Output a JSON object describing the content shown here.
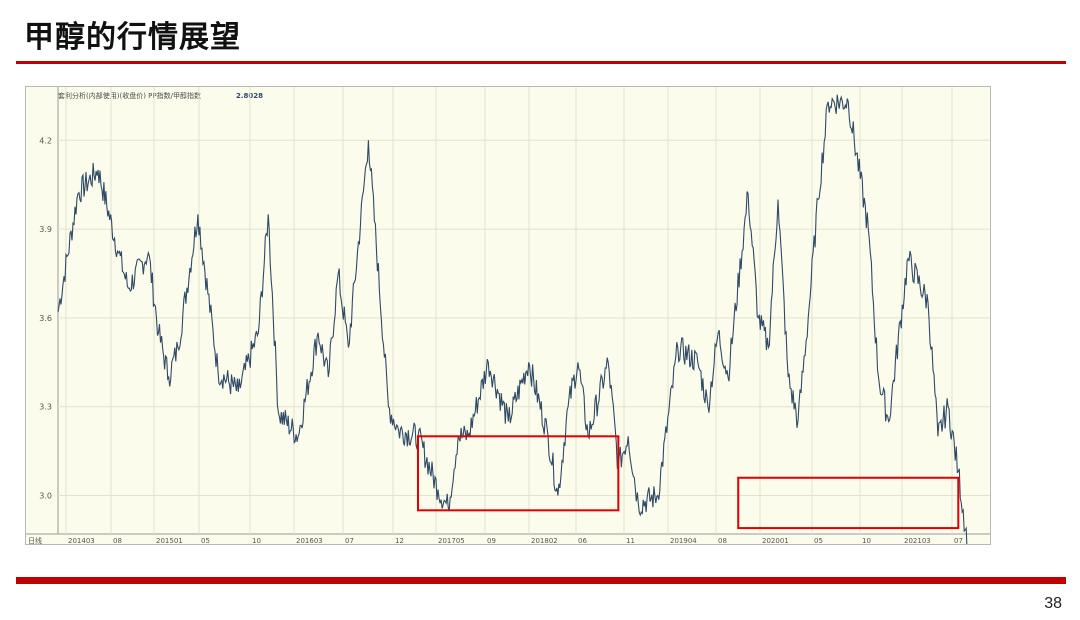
{
  "slide": {
    "title": "甲醇的行情展望",
    "page_number": "38"
  },
  "colors": {
    "accent_red": "#c00000",
    "chart_background": "#fcfcec",
    "line": "#2e4a66",
    "grid": "#e2e2cf",
    "highlight_box": "#e00000"
  },
  "chart_data": {
    "type": "line",
    "title": "套利分析(内部使用)(收盘价) PP指数/甲醇指数",
    "last_value": "2.8028",
    "y_ticks": [
      "4.2",
      "3.9",
      "3.6",
      "3.3",
      "3.0"
    ],
    "ylim": [
      2.87,
      4.38
    ],
    "x_ticks": [
      "日线",
      "201403",
      "08",
      "201501",
      "05",
      "10",
      "201603",
      "07",
      "12",
      "201705",
      "09",
      "201802",
      "06",
      "11",
      "201904",
      "08",
      "202001",
      "05",
      "10",
      "202103",
      "07"
    ],
    "grid": true,
    "series": [
      {
        "x": [
          "2014-03",
          "2014-05",
          "2014-07",
          "2014-09",
          "2014-10",
          "2014-12",
          "2015-01",
          "2015-02",
          "2015-03",
          "2015-05",
          "2015-07",
          "2015-09",
          "2015-11",
          "2015-12",
          "2016-01",
          "2016-03",
          "2016-05",
          "2016-06",
          "2016-07",
          "2016-08",
          "2016-10",
          "2016-12",
          "2017-01",
          "2017-03",
          "2017-05",
          "2017-06",
          "2017-07",
          "2017-08",
          "2017-10",
          "2017-12",
          "2018-02",
          "2018-04",
          "2018-05",
          "2018-06",
          "2018-07",
          "2018-08",
          "2018-10",
          "2018-11",
          "2018-12",
          "2019-01",
          "2019-03",
          "2019-05",
          "2019-07",
          "2019-08",
          "2019-09",
          "2019-10",
          "2019-12",
          "2020-01",
          "2020-02",
          "2020-03",
          "2020-04",
          "2020-05",
          "2020-06",
          "2020-07",
          "2020-08",
          "2020-10",
          "2020-12",
          "2021-01",
          "2021-02",
          "2021-04",
          "2021-06",
          "2021-07",
          "2021-08",
          "2021-09",
          "2021-10"
        ],
        "y": [
          3.62,
          4.02,
          4.1,
          3.82,
          3.7,
          3.82,
          3.55,
          3.4,
          3.5,
          3.95,
          3.42,
          3.35,
          3.55,
          3.95,
          3.28,
          3.2,
          3.55,
          3.4,
          3.75,
          3.5,
          4.2,
          3.3,
          3.22,
          3.2,
          3.02,
          2.96,
          3.2,
          3.2,
          3.45,
          3.25,
          3.45,
          3.2,
          3.0,
          3.3,
          3.45,
          3.2,
          3.45,
          3.1,
          3.2,
          2.97,
          3.0,
          3.5,
          3.45,
          3.3,
          3.55,
          3.4,
          4.02,
          3.6,
          3.5,
          4.0,
          3.4,
          3.25,
          3.6,
          4.0,
          4.33,
          4.33,
          3.9,
          3.4,
          3.25,
          3.8,
          3.65,
          3.2,
          3.3,
          3.08,
          2.82
        ]
      }
    ],
    "highlight_boxes": [
      {
        "x_range": [
          "2017-03",
          "2018-11"
        ],
        "y_range": [
          2.95,
          3.2
        ]
      },
      {
        "x_range": [
          "2019-11",
          "2021-09"
        ],
        "y_range": [
          2.89,
          3.06
        ]
      }
    ]
  }
}
